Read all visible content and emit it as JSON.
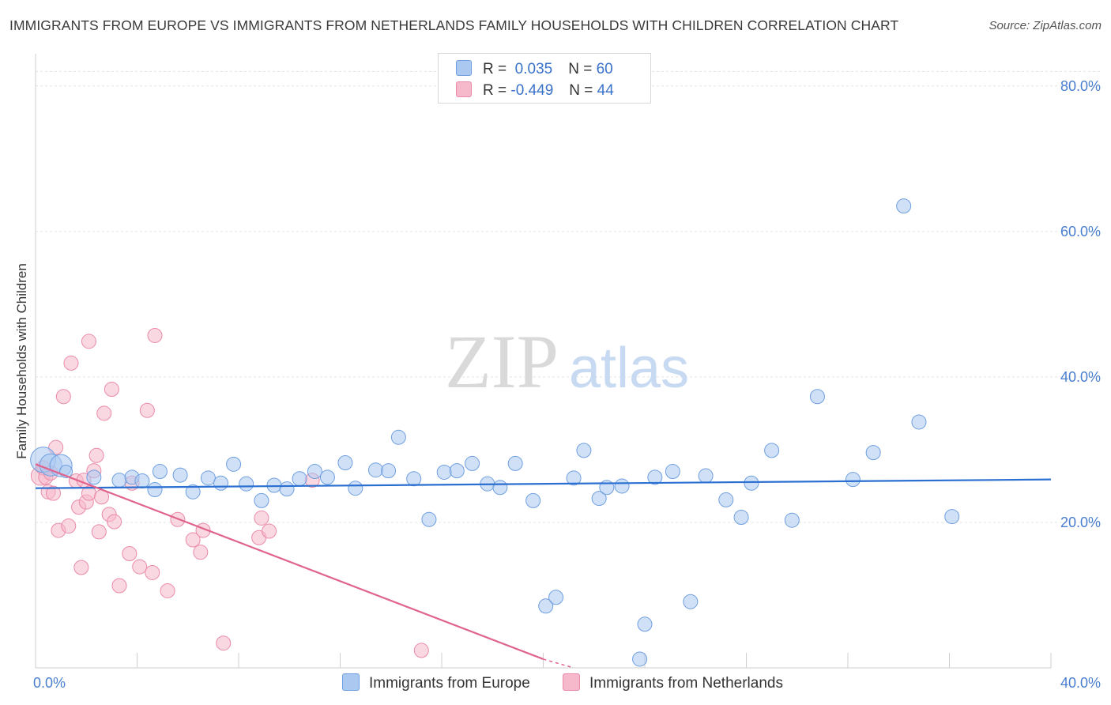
{
  "header": {
    "title": "IMMIGRANTS FROM EUROPE VS IMMIGRANTS FROM NETHERLANDS FAMILY HOUSEHOLDS WITH CHILDREN CORRELATION CHART",
    "source": "Source: ZipAtlas.com"
  },
  "watermark": {
    "zip": "ZIP",
    "atlas": "atlas"
  },
  "legend": {
    "europe": {
      "r_label": "R =",
      "r_value": "0.035",
      "n_label": "N =",
      "n_value": "60"
    },
    "netherlands": {
      "r_label": "R =",
      "r_value": "-0.449",
      "n_label": "N =",
      "n_value": "44"
    }
  },
  "bottom_legend": {
    "europe": "Immigrants from Europe",
    "netherlands": "Immigrants from Netherlands"
  },
  "colors": {
    "europe_fill": "#aac8f0",
    "europe_stroke": "#6f9fe0",
    "europe_line": "#2b6fd1",
    "netherlands_fill": "#f6b8cb",
    "netherlands_stroke": "#ea8aa8",
    "netherlands_line": "#e0648e",
    "grid": "#e3e3e3",
    "tick_text": "#4a7fd0"
  },
  "chart_data": {
    "type": "scatter",
    "title": "IMMIGRANTS FROM EUROPE VS IMMIGRANTS FROM NETHERLANDS FAMILY HOUSEHOLDS WITH CHILDREN CORRELATION CHART",
    "xlabel": "",
    "ylabel": "Family Households with Children",
    "xlim": [
      0,
      40
    ],
    "ylim": [
      0,
      84
    ],
    "x_tick_labels": [
      "0.0%",
      "40.0%"
    ],
    "y_ticks": [
      20,
      40,
      60,
      80
    ],
    "y_tick_labels": [
      "20.0%",
      "40.0%",
      "60.0%",
      "80.0%"
    ],
    "grid": true,
    "series": [
      {
        "name": "Immigrants from Europe",
        "r": 0.035,
        "n": 60,
        "trend": {
          "x": [
            0,
            40
          ],
          "y": [
            24.7,
            25.9
          ]
        },
        "points": [
          [
            0.3,
            28.6,
            16
          ],
          [
            0.6,
            27.9,
            14
          ],
          [
            1.0,
            27.8,
            14
          ],
          [
            1.2,
            27.0,
            8
          ],
          [
            2.3,
            26.2,
            9
          ],
          [
            3.3,
            25.8,
            9
          ],
          [
            3.8,
            26.2,
            9
          ],
          [
            4.2,
            25.7,
            9
          ],
          [
            4.7,
            24.5,
            9
          ],
          [
            4.9,
            27.0,
            9
          ],
          [
            5.7,
            26.5,
            9
          ],
          [
            6.2,
            24.2,
            9
          ],
          [
            6.8,
            26.1,
            9
          ],
          [
            7.3,
            25.4,
            9
          ],
          [
            7.8,
            28.0,
            9
          ],
          [
            8.3,
            25.3,
            9
          ],
          [
            8.9,
            23.0,
            9
          ],
          [
            9.4,
            25.1,
            9
          ],
          [
            9.9,
            24.6,
            9
          ],
          [
            10.4,
            26.0,
            9
          ],
          [
            11.0,
            27.0,
            9
          ],
          [
            11.5,
            26.2,
            9
          ],
          [
            12.2,
            28.2,
            9
          ],
          [
            12.6,
            24.7,
            9
          ],
          [
            13.4,
            27.2,
            9
          ],
          [
            13.9,
            27.1,
            9
          ],
          [
            14.3,
            31.7,
            9
          ],
          [
            14.9,
            26.0,
            9
          ],
          [
            15.5,
            20.4,
            9
          ],
          [
            16.1,
            26.9,
            9
          ],
          [
            16.6,
            27.1,
            9
          ],
          [
            17.2,
            28.1,
            9
          ],
          [
            17.8,
            25.3,
            9
          ],
          [
            18.3,
            24.8,
            9
          ],
          [
            18.9,
            28.1,
            9
          ],
          [
            19.6,
            23.0,
            9
          ],
          [
            20.1,
            8.5,
            9
          ],
          [
            20.5,
            9.7,
            9
          ],
          [
            21.2,
            26.1,
            9
          ],
          [
            21.6,
            29.9,
            9
          ],
          [
            22.2,
            23.3,
            9
          ],
          [
            22.5,
            24.8,
            9
          ],
          [
            23.1,
            25.0,
            9
          ],
          [
            24.0,
            6.0,
            9
          ],
          [
            23.8,
            1.2,
            9
          ],
          [
            24.4,
            26.2,
            9
          ],
          [
            25.1,
            27.0,
            9
          ],
          [
            25.8,
            9.1,
            9
          ],
          [
            26.4,
            26.4,
            9
          ],
          [
            27.2,
            23.1,
            9
          ],
          [
            27.8,
            20.7,
            9
          ],
          [
            28.2,
            25.4,
            9
          ],
          [
            29.0,
            29.9,
            9
          ],
          [
            29.8,
            20.3,
            9
          ],
          [
            30.8,
            37.3,
            9
          ],
          [
            32.2,
            25.9,
            9
          ],
          [
            33.0,
            29.6,
            9
          ],
          [
            34.2,
            63.5,
            9
          ],
          [
            34.8,
            33.8,
            9
          ],
          [
            36.1,
            20.8,
            9
          ]
        ]
      },
      {
        "name": "Immigrants from Netherlands",
        "r": -0.449,
        "n": 44,
        "trend": {
          "x": [
            0,
            20
          ],
          "y": [
            28.0,
            1.2
          ]
        },
        "trend_dashed": {
          "x": [
            20,
            21.2
          ],
          "y": [
            1.2,
            0
          ]
        },
        "points": [
          [
            0.2,
            26.4,
            12
          ],
          [
            0.3,
            27.5,
            9
          ],
          [
            0.4,
            26.2,
            9
          ],
          [
            0.5,
            24.2,
            9
          ],
          [
            0.7,
            24.0,
            9
          ],
          [
            0.8,
            30.3,
            9
          ],
          [
            0.9,
            18.9,
            9
          ],
          [
            1.1,
            37.3,
            9
          ],
          [
            1.3,
            19.5,
            9
          ],
          [
            1.4,
            41.9,
            9
          ],
          [
            1.6,
            25.7,
            9
          ],
          [
            1.7,
            22.1,
            9
          ],
          [
            1.8,
            13.8,
            9
          ],
          [
            1.9,
            25.8,
            9
          ],
          [
            2.0,
            22.8,
            9
          ],
          [
            2.1,
            24.0,
            9
          ],
          [
            2.1,
            44.9,
            9
          ],
          [
            2.3,
            27.1,
            9
          ],
          [
            2.4,
            29.2,
            9
          ],
          [
            2.5,
            18.7,
            9
          ],
          [
            2.6,
            23.5,
            9
          ],
          [
            2.7,
            35.0,
            9
          ],
          [
            2.9,
            21.1,
            9
          ],
          [
            3.0,
            38.3,
            9
          ],
          [
            3.1,
            20.1,
            9
          ],
          [
            3.3,
            11.3,
            9
          ],
          [
            3.7,
            15.7,
            9
          ],
          [
            3.8,
            25.4,
            9
          ],
          [
            4.1,
            13.9,
            9
          ],
          [
            4.4,
            35.4,
            9
          ],
          [
            4.6,
            13.1,
            9
          ],
          [
            4.7,
            45.7,
            9
          ],
          [
            5.2,
            10.6,
            9
          ],
          [
            5.6,
            20.4,
            9
          ],
          [
            6.2,
            17.6,
            9
          ],
          [
            6.5,
            15.9,
            9
          ],
          [
            6.6,
            18.9,
            9
          ],
          [
            7.4,
            3.4,
            9
          ],
          [
            8.8,
            17.9,
            9
          ],
          [
            8.9,
            20.6,
            9
          ],
          [
            9.2,
            18.8,
            9
          ],
          [
            10.9,
            25.8,
            9
          ],
          [
            15.2,
            2.4,
            9
          ],
          [
            0.6,
            26.8,
            9
          ]
        ]
      }
    ]
  }
}
